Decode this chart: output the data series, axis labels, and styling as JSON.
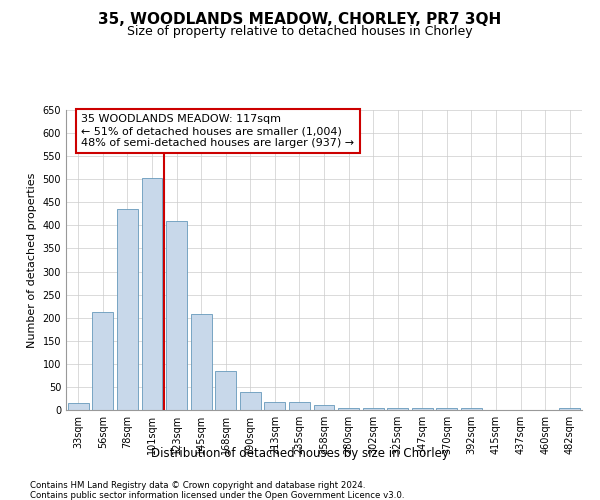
{
  "title1": "35, WOODLANDS MEADOW, CHORLEY, PR7 3QH",
  "title2": "Size of property relative to detached houses in Chorley",
  "xlabel": "Distribution of detached houses by size in Chorley",
  "ylabel": "Number of detached properties",
  "footnote1": "Contains HM Land Registry data © Crown copyright and database right 2024.",
  "footnote2": "Contains public sector information licensed under the Open Government Licence v3.0.",
  "annotation_line1": "35 WOODLANDS MEADOW: 117sqm",
  "annotation_line2": "← 51% of detached houses are smaller (1,004)",
  "annotation_line3": "48% of semi-detached houses are larger (937) →",
  "bar_color": "#c8d8ea",
  "bar_edge_color": "#6699bb",
  "ref_line_color": "#cc0000",
  "ref_line_x": 3.5,
  "categories": [
    "33sqm",
    "56sqm",
    "78sqm",
    "101sqm",
    "123sqm",
    "145sqm",
    "168sqm",
    "190sqm",
    "213sqm",
    "235sqm",
    "258sqm",
    "280sqm",
    "302sqm",
    "325sqm",
    "347sqm",
    "370sqm",
    "392sqm",
    "415sqm",
    "437sqm",
    "460sqm",
    "482sqm"
  ],
  "values": [
    15,
    213,
    435,
    503,
    410,
    207,
    85,
    38,
    18,
    18,
    10,
    5,
    5,
    5,
    5,
    5,
    5,
    0,
    0,
    0,
    5
  ],
  "ylim": [
    0,
    650
  ],
  "yticks": [
    0,
    50,
    100,
    150,
    200,
    250,
    300,
    350,
    400,
    450,
    500,
    550,
    600,
    650
  ],
  "background_color": "#ffffff",
  "grid_color": "#cccccc",
  "title1_fontsize": 11,
  "title2_fontsize": 9
}
